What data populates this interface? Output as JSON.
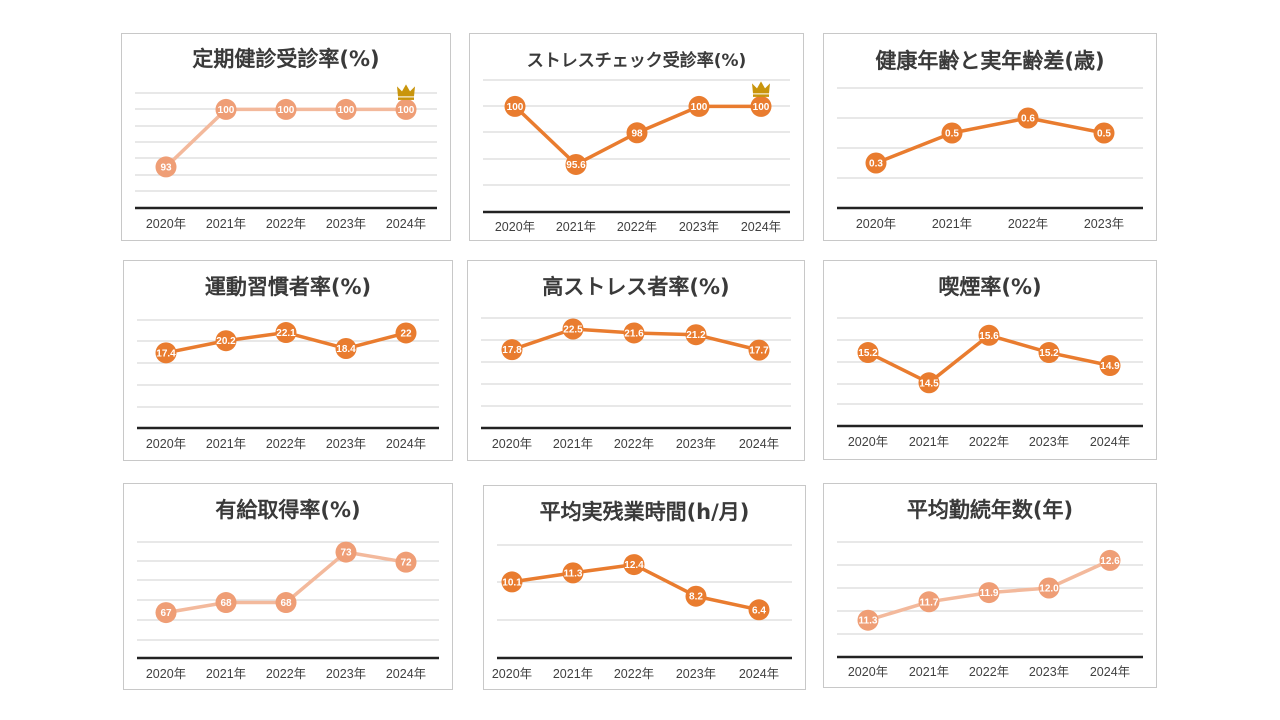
{
  "colors": {
    "dark": "#e97c2f",
    "light_line": "#f3b99c",
    "light_marker": "#ef9e76",
    "grid": "#d9d9d9",
    "baseline": "#222222",
    "crown": "#c9950c"
  },
  "chart_data": [
    {
      "type": "line",
      "title": "定期健診受診率(%)",
      "categories": [
        "2020年",
        "2021年",
        "2022年",
        "2023年",
        "2024年"
      ],
      "values": [
        93,
        100,
        100,
        100,
        100
      ],
      "ylim": [
        88,
        102
      ],
      "style": "light",
      "crown_on": "2024年",
      "grid": true
    },
    {
      "type": "line",
      "title": "ストレスチェック受診率(%)",
      "categories": [
        "2020年",
        "2021年",
        "2022年",
        "2023年",
        "2024年"
      ],
      "values": [
        100,
        95.6,
        98,
        100,
        100
      ],
      "ylim": [
        92,
        102
      ],
      "style": "dark",
      "crown_on": "2024年",
      "grid": true
    },
    {
      "type": "line",
      "title": "健康年齢と実年齢差(歳)",
      "categories": [
        "2020年",
        "2021年",
        "2022年",
        "2023年"
      ],
      "values": [
        0.3,
        0.5,
        0.6,
        0.5
      ],
      "ylim": [
        0,
        0.8
      ],
      "style": "dark",
      "grid": true
    },
    {
      "type": "line",
      "title": "運動習慣者率(%)",
      "categories": [
        "2020年",
        "2021年",
        "2022年",
        "2023年",
        "2024年"
      ],
      "values": [
        17.4,
        20.2,
        22.1,
        18.4,
        22
      ],
      "ylim": [
        0,
        25
      ],
      "style": "dark",
      "grid": true
    },
    {
      "type": "line",
      "title": "高ストレス者率(%)",
      "categories": [
        "2020年",
        "2021年",
        "2022年",
        "2023年",
        "2024年"
      ],
      "values": [
        17.8,
        22.5,
        21.6,
        21.2,
        17.7
      ],
      "ylim": [
        0,
        25
      ],
      "style": "dark",
      "grid": true
    },
    {
      "type": "line",
      "title": "喫煙率(%)",
      "categories": [
        "2020年",
        "2021年",
        "2022年",
        "2023年",
        "2024年"
      ],
      "values": [
        15.2,
        14.5,
        15.6,
        15.2,
        14.9
      ],
      "ylim": [
        13.5,
        16
      ],
      "style": "dark",
      "grid": true
    },
    {
      "type": "line",
      "title": "有給取得率(%)",
      "categories": [
        "2020年",
        "2021年",
        "2022年",
        "2023年",
        "2024年"
      ],
      "values": [
        67,
        68,
        68,
        73,
        72
      ],
      "ylim": [
        62.5,
        74
      ],
      "style": "light",
      "grid": true
    },
    {
      "type": "line",
      "title": "平均実残業時間(h/月)",
      "categories": [
        "2020年",
        "2021年",
        "2022年",
        "2023年",
        "2024年"
      ],
      "values": [
        10.1,
        11.3,
        12.4,
        8.2,
        6.4
      ],
      "value_labels": [
        "10.1",
        "11.3",
        "12.4",
        "8.2",
        "6.4"
      ],
      "ylim": [
        0,
        15
      ],
      "style": "dark",
      "grid": true
    },
    {
      "type": "line",
      "title": "平均勤続年数(年)",
      "categories": [
        "2020年",
        "2021年",
        "2022年",
        "2023年",
        "2024年"
      ],
      "values": [
        11.3,
        11.7,
        11.9,
        12.0,
        12.6
      ],
      "value_labels": [
        "11.3",
        "11.7",
        "11.9",
        "12.0",
        "12.6"
      ],
      "ylim": [
        10.5,
        13
      ],
      "style": "light",
      "grid": true
    }
  ]
}
